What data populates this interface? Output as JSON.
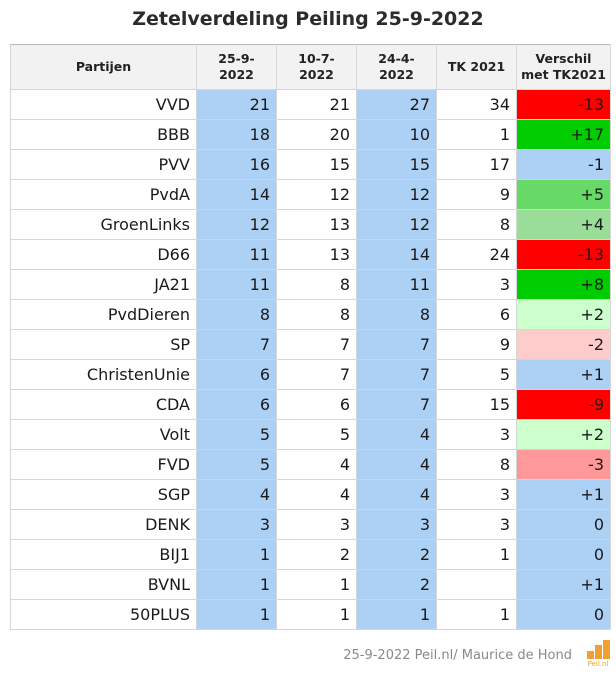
{
  "chart_data": {
    "type": "table",
    "title": "Zetelverdeling Peiling 25-9-2022",
    "columns": [
      "Partijen",
      "25-9-2022",
      "10-7-2022",
      "24-4-2022",
      "TK 2021",
      "Verschil met TK2021"
    ],
    "rows": [
      {
        "party": "VVD",
        "p1": "21",
        "p2": "21",
        "p3": "27",
        "tk": "34",
        "diff": "-13",
        "diff_color": "#ff0000"
      },
      {
        "party": "BBB",
        "p1": "18",
        "p2": "20",
        "p3": "10",
        "tk": "1",
        "diff": "+17",
        "diff_color": "#00cc00"
      },
      {
        "party": "PVV",
        "p1": "16",
        "p2": "15",
        "p3": "15",
        "tk": "17",
        "diff": "-1",
        "diff_color": "#add0f5"
      },
      {
        "party": "PvdA",
        "p1": "14",
        "p2": "12",
        "p3": "12",
        "tk": "9",
        "diff": "+5",
        "diff_color": "#66d966"
      },
      {
        "party": "GroenLinks",
        "p1": "12",
        "p2": "13",
        "p3": "12",
        "tk": "8",
        "diff": "+4",
        "diff_color": "#99dd99"
      },
      {
        "party": "D66",
        "p1": "11",
        "p2": "13",
        "p3": "14",
        "tk": "24",
        "diff": "-13",
        "diff_color": "#ff0000"
      },
      {
        "party": "JA21",
        "p1": "11",
        "p2": "8",
        "p3": "11",
        "tk": "3",
        "diff": "+8",
        "diff_color": "#00cc00"
      },
      {
        "party": "PvdDieren",
        "p1": "8",
        "p2": "8",
        "p3": "8",
        "tk": "6",
        "diff": "+2",
        "diff_color": "#ccffcc"
      },
      {
        "party": "SP",
        "p1": "7",
        "p2": "7",
        "p3": "7",
        "tk": "9",
        "diff": "-2",
        "diff_color": "#ffcccc"
      },
      {
        "party": "ChristenUnie",
        "p1": "6",
        "p2": "7",
        "p3": "7",
        "tk": "5",
        "diff": "+1",
        "diff_color": "#add0f5"
      },
      {
        "party": "CDA",
        "p1": "6",
        "p2": "6",
        "p3": "7",
        "tk": "15",
        "diff": "-9",
        "diff_color": "#ff0000"
      },
      {
        "party": "Volt",
        "p1": "5",
        "p2": "5",
        "p3": "4",
        "tk": "3",
        "diff": "+2",
        "diff_color": "#ccffcc"
      },
      {
        "party": "FVD",
        "p1": "5",
        "p2": "4",
        "p3": "4",
        "tk": "8",
        "diff": "-3",
        "diff_color": "#ff9999"
      },
      {
        "party": "SGP",
        "p1": "4",
        "p2": "4",
        "p3": "4",
        "tk": "3",
        "diff": "+1",
        "diff_color": "#add0f5"
      },
      {
        "party": "DENK",
        "p1": "3",
        "p2": "3",
        "p3": "3",
        "tk": "3",
        "diff": "0",
        "diff_color": "#add0f5"
      },
      {
        "party": "BIJ1",
        "p1": "1",
        "p2": "2",
        "p3": "2",
        "tk": "1",
        "diff": "0",
        "diff_color": "#add0f5"
      },
      {
        "party": "BVNL",
        "p1": "1",
        "p2": "1",
        "p3": "2",
        "tk": "",
        "diff": "+1",
        "diff_color": "#add0f5"
      },
      {
        "party": "50PLUS",
        "p1": "1",
        "p2": "1",
        "p3": "1",
        "tk": "1",
        "diff": "0",
        "diff_color": "#add0f5"
      }
    ]
  },
  "footer": {
    "source": "25-9-2022 Peil.nl/ Maurice de Hond",
    "logo_text": "Peil.nl"
  }
}
